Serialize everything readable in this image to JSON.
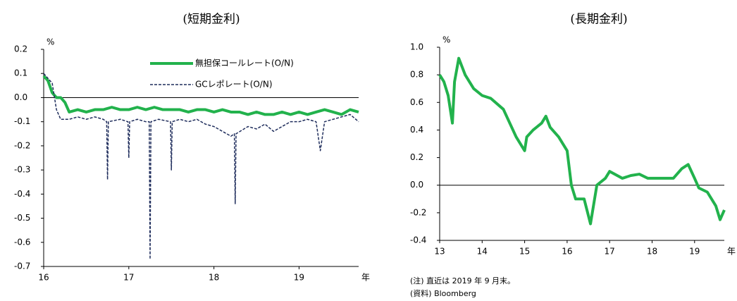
{
  "chart_data": [
    {
      "type": "line",
      "title": "(短期金利)",
      "ylabel": "%",
      "xlabel": "年",
      "xlim": [
        16,
        19.7
      ],
      "xticks": [
        16,
        17,
        18,
        19
      ],
      "ylim": [
        -0.7,
        0.2
      ],
      "yticks": [
        0.2,
        0.1,
        {
          "value": 0,
          "label": "0.0"
        },
        -0.1,
        -0.2,
        -0.3,
        -0.4,
        -0.5,
        -0.6,
        -0.7
      ],
      "series": [
        {
          "name": "無担保コールレート(O/N)",
          "color": "#22b24c",
          "dash": false,
          "x": [
            16.0,
            16.05,
            16.1,
            16.15,
            16.2,
            16.25,
            16.3,
            16.4,
            16.5,
            16.6,
            16.7,
            16.8,
            16.9,
            17.0,
            17.1,
            17.2,
            17.3,
            17.4,
            17.5,
            17.6,
            17.7,
            17.8,
            17.9,
            18.0,
            18.1,
            18.2,
            18.3,
            18.4,
            18.5,
            18.6,
            18.7,
            18.8,
            18.9,
            19.0,
            19.1,
            19.2,
            19.3,
            19.4,
            19.5,
            19.6,
            19.7
          ],
          "values": [
            0.09,
            0.07,
            0.02,
            0,
            0,
            -0.02,
            -0.06,
            -0.05,
            -0.06,
            -0.05,
            -0.05,
            -0.04,
            -0.05,
            -0.05,
            -0.04,
            -0.05,
            -0.04,
            -0.05,
            -0.05,
            -0.05,
            -0.06,
            -0.05,
            -0.05,
            -0.06,
            -0.05,
            -0.06,
            -0.06,
            -0.07,
            -0.06,
            -0.07,
            -0.07,
            -0.06,
            -0.07,
            -0.06,
            -0.07,
            -0.06,
            -0.05,
            -0.06,
            -0.07,
            -0.05,
            -0.06
          ]
        },
        {
          "name": "GCレポレート(O/N)",
          "color": "#1f2d5c",
          "dash": true,
          "x": [
            16.0,
            16.05,
            16.1,
            16.15,
            16.2,
            16.3,
            16.4,
            16.5,
            16.6,
            16.7,
            16.74,
            16.75,
            16.76,
            16.9,
            16.99,
            17.0,
            17.01,
            17.1,
            17.2,
            17.24,
            17.25,
            17.26,
            17.35,
            17.49,
            17.5,
            17.51,
            17.6,
            17.7,
            17.8,
            17.9,
            18.0,
            18.1,
            18.2,
            18.24,
            18.25,
            18.26,
            18.4,
            18.5,
            18.6,
            18.7,
            18.8,
            18.9,
            19.0,
            19.1,
            19.2,
            19.25,
            19.3,
            19.4,
            19.5,
            19.6,
            19.7
          ],
          "values": [
            0.1,
            0.08,
            0.06,
            -0.05,
            -0.09,
            -0.09,
            -0.08,
            -0.09,
            -0.08,
            -0.09,
            -0.1,
            -0.34,
            -0.1,
            -0.09,
            -0.1,
            -0.25,
            -0.1,
            -0.09,
            -0.1,
            -0.1,
            -0.67,
            -0.1,
            -0.09,
            -0.1,
            -0.3,
            -0.1,
            -0.09,
            -0.1,
            -0.09,
            -0.11,
            -0.12,
            -0.14,
            -0.16,
            -0.15,
            -0.44,
            -0.15,
            -0.12,
            -0.13,
            -0.11,
            -0.14,
            -0.12,
            -0.1,
            -0.1,
            -0.09,
            -0.1,
            -0.22,
            -0.1,
            -0.09,
            -0.08,
            -0.07,
            -0.1
          ]
        }
      ]
    },
    {
      "type": "line",
      "title": "(長期金利)",
      "ylabel": "%",
      "xlabel": "年",
      "xlim": [
        13,
        19.7
      ],
      "xticks": [
        13,
        14,
        15,
        16,
        17,
        18,
        19
      ],
      "ylim": [
        -0.4,
        1.0
      ],
      "yticks": [
        {
          "value": 1.0,
          "label": "1.0"
        },
        0.8,
        0.6,
        0.4,
        0.2,
        {
          "value": 0,
          "label": "0.0"
        },
        -0.2,
        -0.4
      ],
      "notes": [
        "(注) 直近は 2019 年 9 月末。",
        "(資料) Bloomberg"
      ],
      "series": [
        {
          "name": "長期金利",
          "color": "#22b24c",
          "dash": false,
          "x": [
            13.0,
            13.1,
            13.2,
            13.3,
            13.35,
            13.45,
            13.6,
            13.8,
            14.0,
            14.2,
            14.5,
            14.8,
            15.0,
            15.05,
            15.2,
            15.4,
            15.5,
            15.6,
            15.8,
            16.0,
            16.1,
            16.2,
            16.4,
            16.55,
            16.7,
            16.9,
            17.0,
            17.3,
            17.5,
            17.7,
            17.9,
            18.0,
            18.3,
            18.5,
            18.7,
            18.85,
            19.0,
            19.1,
            19.3,
            19.5,
            19.6,
            19.7
          ],
          "values": [
            0.8,
            0.75,
            0.65,
            0.45,
            0.75,
            0.92,
            0.8,
            0.7,
            0.65,
            0.63,
            0.55,
            0.35,
            0.25,
            0.35,
            0.4,
            0.45,
            0.5,
            0.42,
            0.35,
            0.25,
            0,
            -0.1,
            -0.1,
            -0.28,
            0,
            0.05,
            0.1,
            0.05,
            0.07,
            0.08,
            0.05,
            0.05,
            0.05,
            0.05,
            0.12,
            0.15,
            0.05,
            -0.02,
            -0.05,
            -0.15,
            -0.25,
            -0.18
          ]
        }
      ]
    }
  ]
}
